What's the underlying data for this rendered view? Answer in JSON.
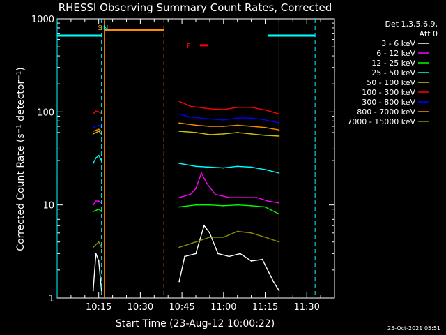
{
  "chart_data": {
    "type": "line",
    "title": "RHESSI Observing Summary Count Rates, Corrected",
    "xlabel": "Start Time (23-Aug-12 10:00:22)",
    "ylabel": "Corrected Count Rate (s⁻¹ detector⁻¹)",
    "yscale": "log",
    "ylim": [
      1,
      1000
    ],
    "xlim_minutes": [
      0,
      100
    ],
    "x_ticks": [
      {
        "label": "10:15",
        "min": 15
      },
      {
        "label": "10:30",
        "min": 30
      },
      {
        "label": "10:45",
        "min": 45
      },
      {
        "label": "11:00",
        "min": 60
      },
      {
        "label": "11:15",
        "min": 75
      },
      {
        "label": "11:30",
        "min": 90
      }
    ],
    "y_ticks": [
      {
        "label": "1",
        "value": 1
      },
      {
        "label": "10",
        "value": 10
      },
      {
        "label": "100",
        "value": 100
      },
      {
        "label": "1000",
        "value": 1000
      }
    ],
    "legend": {
      "header": [
        "Det 1,3,5,6,9,",
        "Att 0"
      ],
      "placement": "right"
    },
    "series": [
      {
        "name": "3 - 6 keV",
        "color": "#ffffff",
        "segments": [
          [
            [
              13,
              1.2
            ],
            [
              14,
              3
            ],
            [
              15,
              2.5
            ],
            [
              16,
              1.2
            ]
          ],
          [
            [
              44,
              1.5
            ],
            [
              46,
              2.8
            ],
            [
              50,
              3
            ],
            [
              53,
              6
            ],
            [
              55,
              5
            ],
            [
              58,
              3
            ],
            [
              62,
              2.8
            ],
            [
              66,
              3
            ],
            [
              70,
              2.5
            ],
            [
              74,
              2.6
            ],
            [
              78,
              1.5
            ],
            [
              80,
              1.2
            ]
          ]
        ]
      },
      {
        "name": "6 - 12 keV",
        "color": "#ff00ff",
        "segments": [
          [
            [
              13,
              10
            ],
            [
              14,
              11
            ],
            [
              15,
              11
            ],
            [
              16,
              10.5
            ]
          ],
          [
            [
              44,
              12
            ],
            [
              48,
              13
            ],
            [
              50,
              15
            ],
            [
              52,
              22
            ],
            [
              54,
              17
            ],
            [
              57,
              13
            ],
            [
              62,
              12
            ],
            [
              68,
              12
            ],
            [
              72,
              12
            ],
            [
              76,
              11
            ],
            [
              80,
              10.5
            ]
          ]
        ]
      },
      {
        "name": "12 - 25 keV",
        "color": "#00ff00",
        "segments": [
          [
            [
              13,
              8.5
            ],
            [
              15,
              9
            ],
            [
              16,
              8.5
            ]
          ],
          [
            [
              44,
              9.5
            ],
            [
              50,
              10
            ],
            [
              55,
              10
            ],
            [
              60,
              9.8
            ],
            [
              65,
              10
            ],
            [
              70,
              9.8
            ],
            [
              75,
              9.5
            ],
            [
              80,
              8
            ]
          ]
        ]
      },
      {
        "name": "25 - 50 keV",
        "color": "#00ffff",
        "segments": [
          [
            [
              13,
              28
            ],
            [
              14,
              32
            ],
            [
              15,
              34
            ],
            [
              16,
              30
            ]
          ],
          [
            [
              44,
              28
            ],
            [
              50,
              26
            ],
            [
              55,
              25.5
            ],
            [
              60,
              25
            ],
            [
              65,
              26
            ],
            [
              70,
              25.5
            ],
            [
              75,
              24
            ],
            [
              80,
              22
            ]
          ]
        ]
      },
      {
        "name": "50 - 100 keV",
        "color": "#d4c400",
        "segments": [
          [
            [
              13,
              58
            ],
            [
              15,
              62
            ],
            [
              16,
              58
            ]
          ],
          [
            [
              44,
              62
            ],
            [
              50,
              60
            ],
            [
              55,
              57
            ],
            [
              60,
              58
            ],
            [
              65,
              60
            ],
            [
              70,
              58
            ],
            [
              75,
              56
            ],
            [
              80,
              55
            ]
          ]
        ]
      },
      {
        "name": "100 - 300 keV",
        "color": "#ff0000",
        "segments": [
          [
            [
              13,
              95
            ],
            [
              14,
              102
            ],
            [
              15,
              100
            ],
            [
              16,
              95
            ]
          ],
          [
            [
              44,
              130
            ],
            [
              48,
              115
            ],
            [
              55,
              108
            ],
            [
              60,
              106
            ],
            [
              65,
              112
            ],
            [
              70,
              112
            ],
            [
              75,
              105
            ],
            [
              80,
              95
            ]
          ]
        ]
      },
      {
        "name": "300 - 800 keV",
        "color": "#0000ff",
        "segments": [
          [
            [
              13,
              68
            ],
            [
              15,
              72
            ],
            [
              16,
              68
            ]
          ],
          [
            [
              44,
              95
            ],
            [
              48,
              88
            ],
            [
              55,
              84
            ],
            [
              60,
              82
            ],
            [
              65,
              86
            ],
            [
              70,
              86
            ],
            [
              75,
              82
            ],
            [
              80,
              76
            ]
          ]
        ]
      },
      {
        "name": "800 - 7000 keV",
        "color": "#ff8c00",
        "segments": [
          [
            [
              13,
              62
            ],
            [
              15,
              65
            ],
            [
              16,
              62
            ]
          ],
          [
            [
              44,
              76
            ],
            [
              50,
              72
            ],
            [
              55,
              70
            ],
            [
              60,
              70
            ],
            [
              65,
              72
            ],
            [
              70,
              70
            ],
            [
              75,
              68
            ],
            [
              80,
              64
            ]
          ]
        ]
      },
      {
        "name": "7000 - 15000 keV",
        "color": "#8b8b00",
        "segments": [
          [
            [
              13,
              3.5
            ],
            [
              15,
              4
            ],
            [
              16,
              3.5
            ]
          ],
          [
            [
              44,
              3.5
            ],
            [
              50,
              4
            ],
            [
              55,
              4.5
            ],
            [
              60,
              4.5
            ],
            [
              65,
              5.2
            ],
            [
              70,
              5
            ],
            [
              75,
              4.5
            ],
            [
              80,
              4
            ]
          ]
        ]
      }
    ],
    "annotations": [
      {
        "text": "S",
        "min": 15.5,
        "color": "#ff8c00"
      },
      {
        "text": "N",
        "min": 17.5,
        "color": "#00ffff"
      },
      {
        "text": "F",
        "min": 47.5,
        "color": "#ff0000"
      }
    ],
    "cyan_bars": [
      {
        "x0": 0,
        "x1": 16,
        "value": 660
      },
      {
        "x0": 76,
        "x1": 93,
        "value": 660
      }
    ],
    "orange_bar": {
      "x0": 17,
      "x1": 38.5,
      "value": 760
    },
    "flare_bar": {
      "x0": 51.5,
      "x1": 54.5,
      "value": 520
    },
    "vlines": [
      {
        "min": 0,
        "color": "#00ffff",
        "dash": false
      },
      {
        "min": 16,
        "color": "#00ffff",
        "dash": true
      },
      {
        "min": 17,
        "color": "#ff8c00",
        "dash": false
      },
      {
        "min": 38.5,
        "color": "#ff8c00",
        "dash": true
      },
      {
        "min": 76,
        "color": "#00ffff",
        "dash": false
      },
      {
        "min": 80,
        "color": "#ff8c00",
        "dash": false
      },
      {
        "min": 93,
        "color": "#00ffff",
        "dash": true
      }
    ]
  },
  "footer": {
    "timestamp": "25-Oct-2021 05:51"
  }
}
